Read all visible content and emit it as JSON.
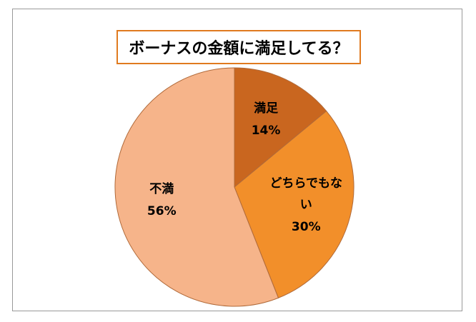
{
  "chart_data": {
    "type": "pie",
    "title": "ボーナスの金額に満足してる？",
    "categories": [
      "満足",
      "どちらでもない",
      "不満"
    ],
    "values": [
      14,
      30,
      56
    ],
    "value_labels": [
      "14%",
      "30%",
      "56%"
    ],
    "colors": [
      "#c9661f",
      "#f28f2a",
      "#f6b48a"
    ]
  }
}
